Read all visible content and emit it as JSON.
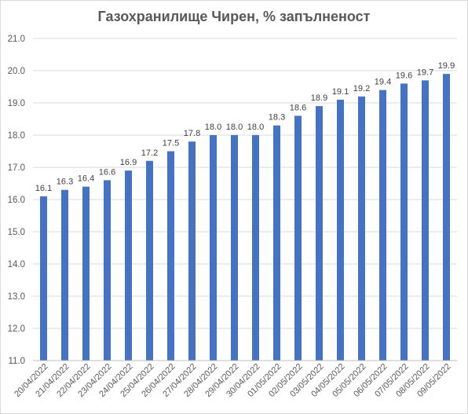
{
  "chart_data": {
    "type": "bar",
    "title": "Газохранилище Чирен, % запълненост",
    "xlabel": "",
    "ylabel": "",
    "ylim": [
      11.0,
      21.0
    ],
    "yticks": [
      "11.0",
      "12.0",
      "13.0",
      "14.0",
      "15.0",
      "16.0",
      "17.0",
      "18.0",
      "19.0",
      "20.0",
      "21.0"
    ],
    "grid": true,
    "legend": "none",
    "bar_color": "#4472C4",
    "gridline_color": "#d9d9d9",
    "categories": [
      "20/04/2022",
      "21/04/2022",
      "22/04/2022",
      "23/04/2022",
      "24/04/2022",
      "25/04/2022",
      "26/04/2022",
      "27/04/2022",
      "28/04/2022",
      "29/04/2022",
      "30/04/2022",
      "01/05/2022",
      "02/05/2022",
      "03/05/2022",
      "04/05/2022",
      "05/05/2022",
      "06/05/2022",
      "07/05/2022",
      "08/05/2022",
      "09/05/2022"
    ],
    "values": [
      16.1,
      16.3,
      16.4,
      16.6,
      16.9,
      17.2,
      17.5,
      17.8,
      18.0,
      18.0,
      18.0,
      18.3,
      18.6,
      18.9,
      19.1,
      19.2,
      19.4,
      19.6,
      19.7,
      19.9
    ],
    "data_labels": [
      "16.1",
      "16.3",
      "16.4",
      "16.6",
      "16.9",
      "17.2",
      "17.5",
      "17.8",
      "18.0",
      "18.0",
      "18.0",
      "18.3",
      "18.6",
      "18.9",
      "19.1",
      "19.2",
      "19.4",
      "19.6",
      "19.7",
      "19.9"
    ]
  }
}
